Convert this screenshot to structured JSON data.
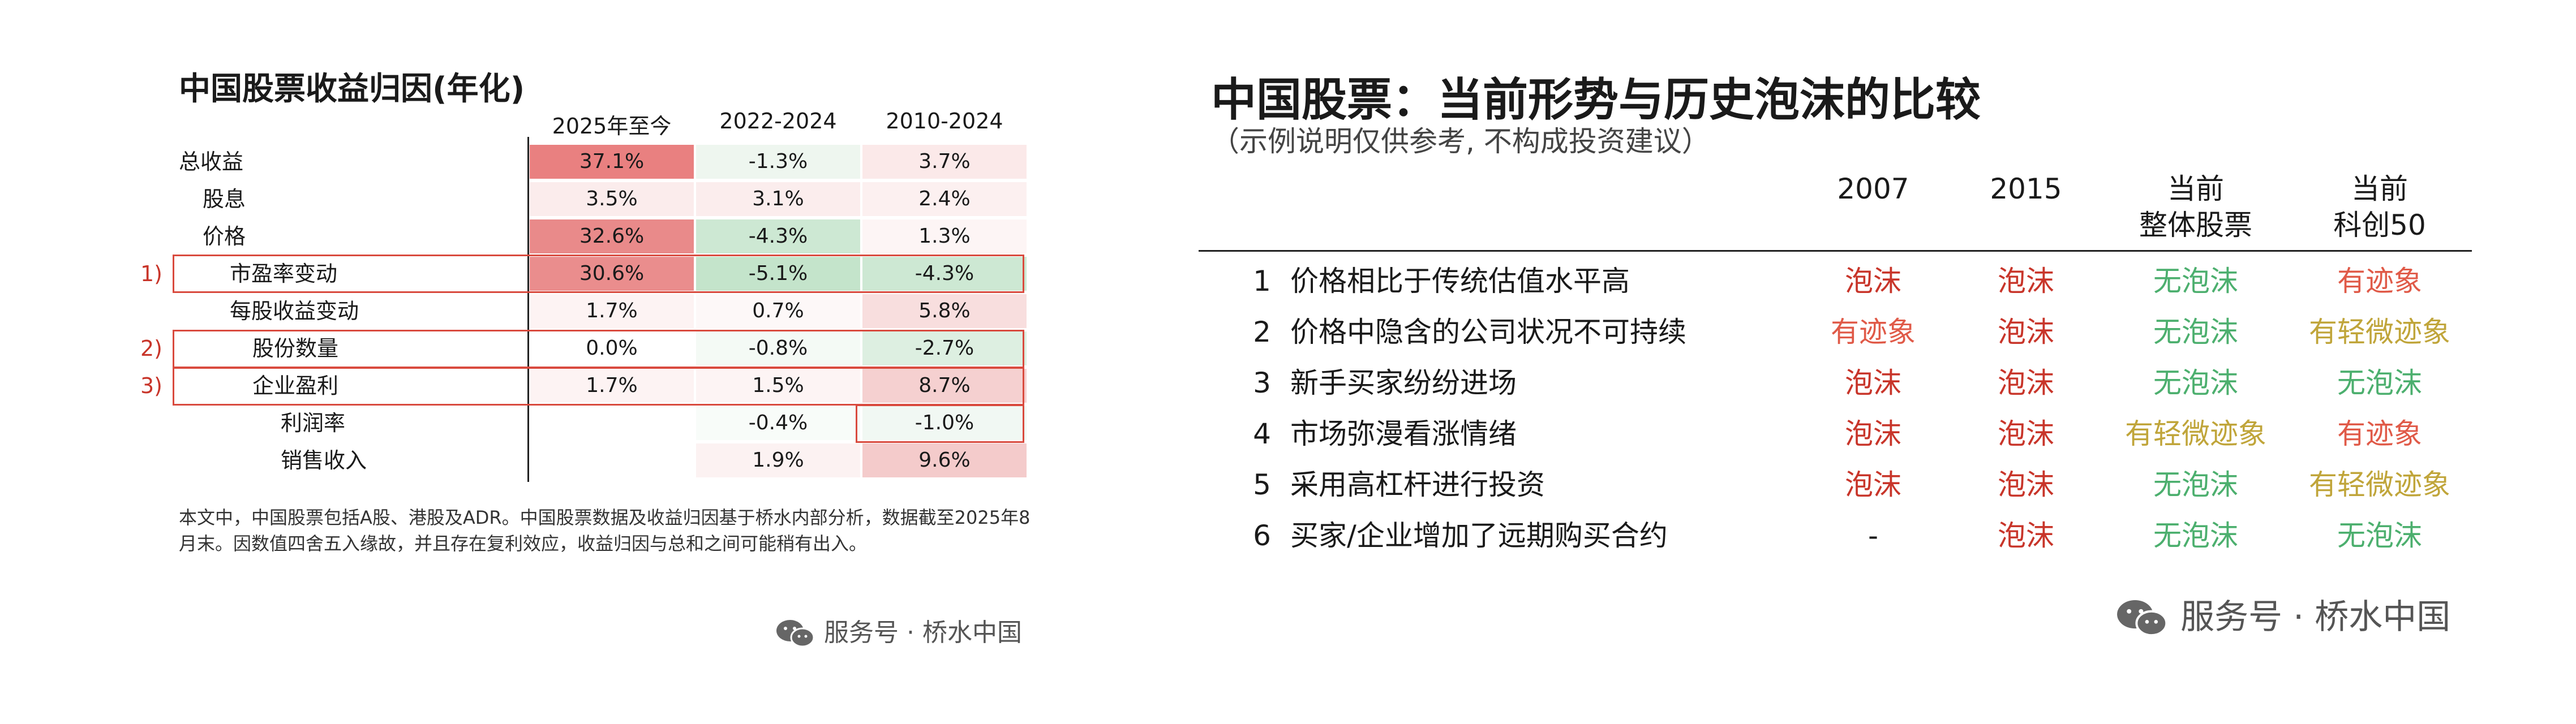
{
  "colors": {
    "bubble": "#c8352a",
    "signs": "#e05a48",
    "slight_signs": "#c0a53a",
    "no_bubble": "#4caf6e",
    "outline": "#d94a3e"
  },
  "left": {
    "title": "中国股票收益归因(年化)",
    "columns": [
      "2025年至今",
      "2022-2024",
      "2010-2024"
    ],
    "rows": [
      {
        "label": "总收益",
        "marker": "",
        "cells": [
          {
            "v": "37.1%",
            "bg": "#e98080"
          },
          {
            "v": "-1.3%",
            "bg": "#eef6ef"
          },
          {
            "v": "3.7%",
            "bg": "#fbe9e9"
          }
        ]
      },
      {
        "label": "股息",
        "marker": "",
        "cells": [
          {
            "v": "3.5%",
            "bg": "#fbecec"
          },
          {
            "v": "3.1%",
            "bg": "#fbeded"
          },
          {
            "v": "2.4%",
            "bg": "#fcf0f0"
          }
        ]
      },
      {
        "label": "价格",
        "marker": "",
        "cells": [
          {
            "v": "32.6%",
            "bg": "#e98a8a"
          },
          {
            "v": "-4.3%",
            "bg": "#cde8d3"
          },
          {
            "v": "1.3%",
            "bg": "#fdf5f5"
          }
        ]
      },
      {
        "label": "市盈率变动",
        "marker": "1)",
        "cells": [
          {
            "v": "30.6%",
            "bg": "#ea8d8d"
          },
          {
            "v": "-5.1%",
            "bg": "#c4e4cb"
          },
          {
            "v": "-4.3%",
            "bg": "#cde8d3"
          }
        ]
      },
      {
        "label": "每股收益变动",
        "marker": "",
        "cells": [
          {
            "v": "1.7%",
            "bg": "#fdf3f3"
          },
          {
            "v": "0.7%",
            "bg": "#fdf8f8"
          },
          {
            "v": "5.8%",
            "bg": "#f8dede"
          }
        ]
      },
      {
        "label": "股份数量",
        "marker": "2)",
        "cells": [
          {
            "v": "0.0%",
            "bg": "#ffffff"
          },
          {
            "v": "-0.8%",
            "bg": "#f4faf5"
          },
          {
            "v": "-2.7%",
            "bg": "#ddefe1"
          }
        ]
      },
      {
        "label": "企业盈利",
        "marker": "3)",
        "cells": [
          {
            "v": "1.7%",
            "bg": "#fdf3f3"
          },
          {
            "v": "1.5%",
            "bg": "#fdf4f4"
          },
          {
            "v": "8.7%",
            "bg": "#f5d0d0"
          }
        ]
      },
      {
        "label": "利润率",
        "marker": "",
        "cells": [
          {
            "v": "",
            "bg": "#ffffff"
          },
          {
            "v": "-0.4%",
            "bg": "#f8fcf9"
          },
          {
            "v": "-1.0%",
            "bg": "#f1f8f3"
          }
        ]
      },
      {
        "label": "销售收入",
        "marker": "",
        "cells": [
          {
            "v": "",
            "bg": "#ffffff"
          },
          {
            "v": "1.9%",
            "bg": "#fcf2f2"
          },
          {
            "v": "9.6%",
            "bg": "#f4cbcb"
          }
        ]
      }
    ],
    "note": "本文中，中国股票包括A股、港股及ADR。中国股票数据及收益归因基于桥水内部分析，数据截至2025年8月末。因数值四舍五入缘故，并且存在复利效应，收益归因与总和之间可能稍有出入。",
    "watermark": "服务号 · 桥水中国"
  },
  "right": {
    "title": "中国股票：当前形势与历史泡沫的比较",
    "subtitle": "（示例说明仅供参考, 不构成投资建议）",
    "columns": [
      {
        "line1": "",
        "line2": "2007"
      },
      {
        "line1": "",
        "line2": "2015"
      },
      {
        "line1": "当前",
        "line2": "整体股票"
      },
      {
        "line1": "当前",
        "line2": "科创50"
      }
    ],
    "rows": [
      {
        "num": "1",
        "label": "价格相比于传统估值水平高",
        "cells": [
          {
            "v": "泡沫",
            "c": "#c8352a"
          },
          {
            "v": "泡沫",
            "c": "#c8352a"
          },
          {
            "v": "无泡沫",
            "c": "#4caf6e"
          },
          {
            "v": "有迹象",
            "c": "#e05a48"
          }
        ]
      },
      {
        "num": "2",
        "label": "价格中隐含的公司状况不可持续",
        "cells": [
          {
            "v": "有迹象",
            "c": "#e05a48"
          },
          {
            "v": "泡沫",
            "c": "#c8352a"
          },
          {
            "v": "无泡沫",
            "c": "#4caf6e"
          },
          {
            "v": "有轻微迹象",
            "c": "#c0a53a"
          }
        ]
      },
      {
        "num": "3",
        "label": "新手买家纷纷进场",
        "cells": [
          {
            "v": "泡沫",
            "c": "#c8352a"
          },
          {
            "v": "泡沫",
            "c": "#c8352a"
          },
          {
            "v": "无泡沫",
            "c": "#4caf6e"
          },
          {
            "v": "无泡沫",
            "c": "#4caf6e"
          }
        ]
      },
      {
        "num": "4",
        "label": "市场弥漫看涨情绪",
        "cells": [
          {
            "v": "泡沫",
            "c": "#c8352a"
          },
          {
            "v": "泡沫",
            "c": "#c8352a"
          },
          {
            "v": "有轻微迹象",
            "c": "#c0a53a"
          },
          {
            "v": "有迹象",
            "c": "#e05a48"
          }
        ]
      },
      {
        "num": "5",
        "label": "采用高杠杆进行投资",
        "cells": [
          {
            "v": "泡沫",
            "c": "#c8352a"
          },
          {
            "v": "泡沫",
            "c": "#c8352a"
          },
          {
            "v": "无泡沫",
            "c": "#4caf6e"
          },
          {
            "v": "有轻微迹象",
            "c": "#c0a53a"
          }
        ]
      },
      {
        "num": "6",
        "label": "买家/企业增加了远期购买合约",
        "cells": [
          {
            "v": "-",
            "c": "#1a1a1a"
          },
          {
            "v": "泡沫",
            "c": "#c8352a"
          },
          {
            "v": "无泡沫",
            "c": "#4caf6e"
          },
          {
            "v": "无泡沫",
            "c": "#4caf6e"
          }
        ]
      }
    ],
    "watermark": "服务号 · 桥水中国"
  }
}
